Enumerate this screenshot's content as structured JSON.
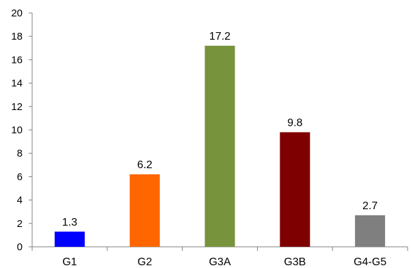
{
  "chart_data": {
    "type": "bar",
    "categories": [
      "G1",
      "G2",
      "G3A",
      "G3B",
      "G4-G5"
    ],
    "values": [
      1.3,
      6.2,
      17.2,
      9.8,
      2.7
    ],
    "data_labels": [
      "1.3",
      "6.2",
      "17.2",
      "9.8",
      "2.7"
    ],
    "colors": [
      "#0000ff",
      "#ff6600",
      "#77933c",
      "#7f0000",
      "#7f7f7f"
    ],
    "title": "",
    "xlabel": "",
    "ylabel": "",
    "ylim": [
      0,
      20
    ],
    "yticks": [
      0,
      2,
      4,
      6,
      8,
      10,
      12,
      14,
      16,
      18,
      20
    ],
    "grid": false,
    "legend": "none"
  }
}
